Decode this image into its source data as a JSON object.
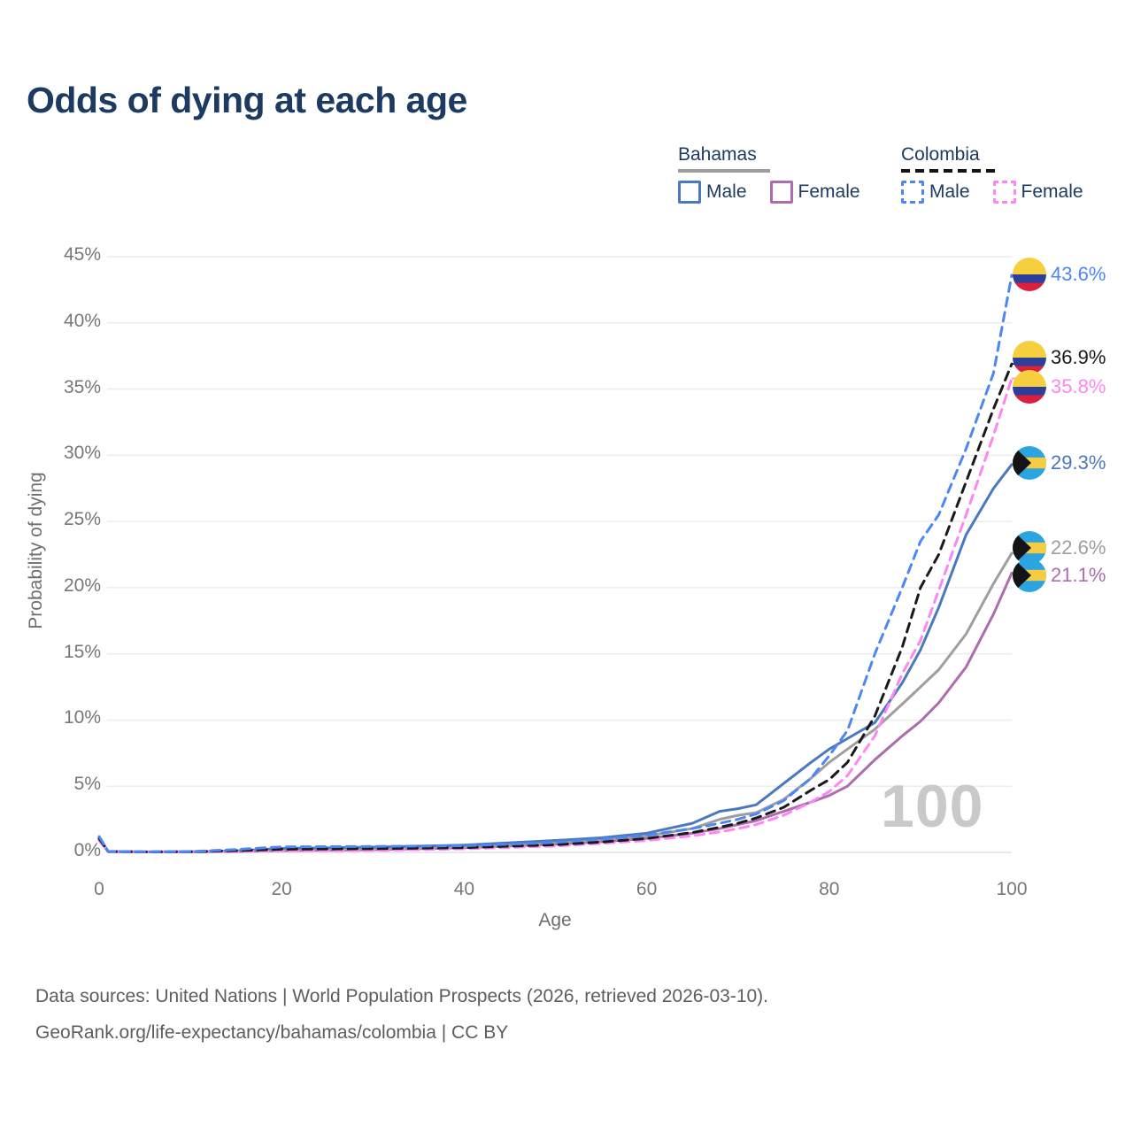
{
  "title": "Odds of dying at each age",
  "watermark": "100",
  "legend": {
    "groups": [
      {
        "country": "Bahamas",
        "style": "solid",
        "underline_color": "#9e9e9e",
        "items": [
          {
            "label": "Male",
            "color": "#4a79bd"
          },
          {
            "label": "Female",
            "color": "#ad6cad"
          }
        ]
      },
      {
        "country": "Colombia",
        "style": "dashed",
        "underline_color": "#141414",
        "items": [
          {
            "label": "Male",
            "color": "#4d87f5"
          },
          {
            "label": "Female",
            "color": "#ff85f3"
          }
        ]
      }
    ]
  },
  "axes": {
    "x": {
      "label": "Age"
    },
    "y": {
      "label": "Probability of dying"
    }
  },
  "footer": {
    "line1": "Data sources: United Nations | World Population Prospects (2026, retrieved 2026-03-10).",
    "line2": "GeoRank.org/life-expectancy/bahamas/colombia | CC BY"
  },
  "chart_data": {
    "type": "line",
    "title": "Odds of dying at each age",
    "xlabel": "Age",
    "ylabel": "Probability of dying",
    "xlim": [
      0,
      100
    ],
    "ylim": [
      0,
      45
    ],
    "x_ticks": [
      0,
      20,
      40,
      60,
      80,
      100
    ],
    "y_ticks_pct": [
      0,
      5,
      10,
      15,
      20,
      25,
      30,
      35,
      40,
      45
    ],
    "grid": "horizontal",
    "legend_position": "top-right",
    "x_ages": [
      0,
      1,
      5,
      10,
      15,
      20,
      30,
      40,
      50,
      55,
      60,
      65,
      68,
      70,
      72,
      75,
      78,
      80,
      82,
      85,
      88,
      90,
      92,
      95,
      98,
      100
    ],
    "series": [
      {
        "id": "colombia-male",
        "country": "Colombia",
        "sex": "Male",
        "style": "dashed",
        "color": "#4d87f5",
        "flag": "colombia",
        "end_label": "43.6%",
        "end_value": 43.6,
        "values": [
          1.2,
          0.08,
          0.045,
          0.06,
          0.22,
          0.42,
          0.45,
          0.5,
          0.75,
          1.0,
          1.3,
          1.8,
          2.2,
          2.5,
          2.9,
          3.9,
          5.6,
          7.3,
          9.2,
          15.0,
          20.0,
          23.5,
          25.5,
          30.5,
          36.2,
          43.6
        ]
      },
      {
        "id": "colombia-combined",
        "country": "Colombia",
        "sex": "Both sexes",
        "style": "dashed",
        "color": "#1a1a1a",
        "flag": "colombia",
        "end_label": "36.9%",
        "end_value": 36.9,
        "values": [
          1.05,
          0.07,
          0.04,
          0.05,
          0.13,
          0.24,
          0.28,
          0.36,
          0.58,
          0.78,
          1.05,
          1.5,
          1.9,
          2.2,
          2.6,
          3.4,
          4.7,
          5.5,
          6.8,
          10.3,
          15.5,
          20.0,
          22.5,
          28.0,
          33.5,
          36.9
        ]
      },
      {
        "id": "colombia-female",
        "country": "Colombia",
        "sex": "Female",
        "style": "dashed",
        "color": "#ff85f3",
        "flag": "colombia",
        "end_label": "35.8%",
        "end_value": 35.8,
        "values": [
          0.9,
          0.06,
          0.03,
          0.04,
          0.08,
          0.11,
          0.15,
          0.27,
          0.48,
          0.68,
          0.9,
          1.25,
          1.55,
          1.8,
          2.1,
          2.8,
          3.8,
          4.6,
          5.8,
          8.8,
          13.5,
          16.0,
          19.8,
          25.5,
          31.5,
          35.8
        ]
      },
      {
        "id": "bahamas-male",
        "country": "Bahamas",
        "sex": "Male",
        "style": "solid",
        "color": "#4a79bd",
        "flag": "bahamas",
        "end_label": "29.3%",
        "end_value": 29.3,
        "values": [
          1.1,
          0.07,
          0.04,
          0.05,
          0.12,
          0.3,
          0.4,
          0.55,
          0.9,
          1.1,
          1.45,
          2.2,
          3.1,
          3.3,
          3.6,
          5.2,
          6.8,
          7.8,
          8.6,
          9.8,
          12.8,
          15.3,
          18.5,
          24.0,
          27.5,
          29.3
        ]
      },
      {
        "id": "bahamas-combined",
        "country": "Bahamas",
        "sex": "Both sexes",
        "style": "solid",
        "color": "#9e9e9e",
        "flag": "bahamas",
        "end_label": "22.6%",
        "end_value": 22.6,
        "values": [
          1.0,
          0.065,
          0.035,
          0.045,
          0.1,
          0.24,
          0.32,
          0.45,
          0.75,
          0.95,
          1.25,
          1.8,
          2.5,
          2.8,
          3.0,
          4.0,
          5.6,
          6.8,
          7.8,
          9.3,
          11.2,
          12.5,
          13.8,
          16.5,
          20.3,
          22.6
        ]
      },
      {
        "id": "bahamas-female",
        "country": "Bahamas",
        "sex": "Female",
        "style": "solid",
        "color": "#ad6cad",
        "flag": "bahamas",
        "end_label": "21.1%",
        "end_value": 21.1,
        "values": [
          0.9,
          0.06,
          0.03,
          0.04,
          0.07,
          0.13,
          0.2,
          0.35,
          0.62,
          0.8,
          1.05,
          1.45,
          1.8,
          2.1,
          2.4,
          3.1,
          3.8,
          4.3,
          5.0,
          7.0,
          8.8,
          9.9,
          11.3,
          14.0,
          18.0,
          21.1
        ]
      }
    ],
    "flag_colors": {
      "colombia": {
        "yellow": "#f6cf3f",
        "blue": "#2b3f9b",
        "red": "#dd1f3e"
      },
      "bahamas": {
        "aquamarine": "#2ba4e0",
        "gold": "#f6cc40",
        "black": "#141414"
      }
    }
  }
}
